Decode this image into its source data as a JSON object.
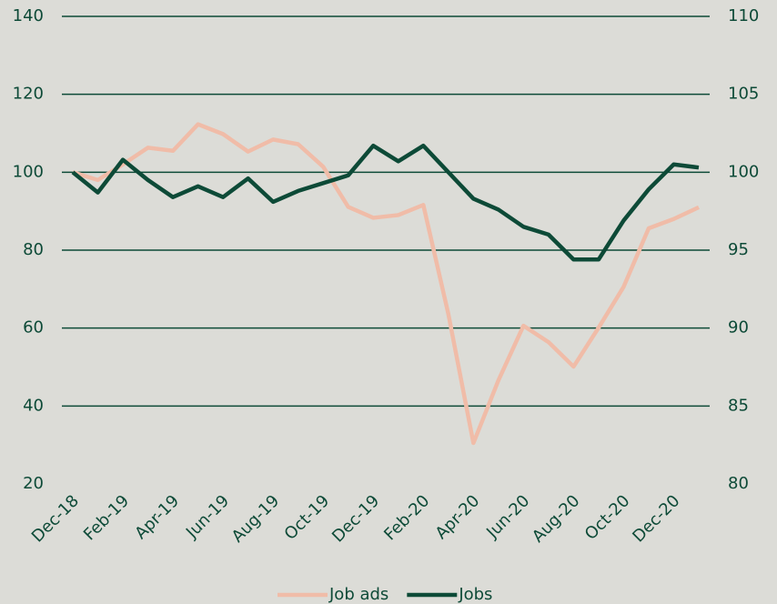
{
  "chart_data": {
    "type": "line",
    "categories": [
      "Dec-18",
      null,
      "Feb-19",
      null,
      "Apr-19",
      null,
      "Jun-19",
      null,
      "Aug-19",
      null,
      "Oct-19",
      null,
      "Dec-19",
      null,
      "Feb-20",
      null,
      "Apr-20",
      null,
      "Jun-20",
      null,
      "Aug-20",
      null,
      "Oct-20",
      null,
      "Dec-20",
      null
    ],
    "series": [
      {
        "name": "Job ads",
        "color": "#f0bca8",
        "values": [
          100,
          98,
          102,
          106.3,
          105.5,
          112.3,
          109.8,
          105.3,
          108.4,
          107.2,
          101.4,
          91.1,
          88.3,
          89,
          91.6,
          63.6,
          30.5,
          46.6,
          60.6,
          56.4,
          50.1,
          60.1,
          70.6,
          85.6,
          88,
          91
        ]
      },
      {
        "name": "Jobs",
        "color": "#0d4a37",
        "axis": "y2",
        "values": [
          100,
          98.7,
          100.8,
          99.5,
          98.4,
          99.1,
          98.4,
          99.6,
          98.1,
          98.8,
          99.3,
          99.8,
          101.7,
          100.7,
          101.7,
          100,
          98.3,
          97.6,
          96.5,
          96,
          94.4,
          94.4,
          96.9,
          98.9,
          100.5,
          100.3
        ]
      }
    ],
    "ylim": [
      20,
      140
    ],
    "yticks": [
      20,
      40,
      60,
      80,
      100,
      120,
      140
    ],
    "y2lim": [
      80,
      110
    ],
    "y2ticks": [
      80,
      85,
      90,
      95,
      100,
      105,
      110
    ],
    "grid": true,
    "legend": "bottom"
  }
}
